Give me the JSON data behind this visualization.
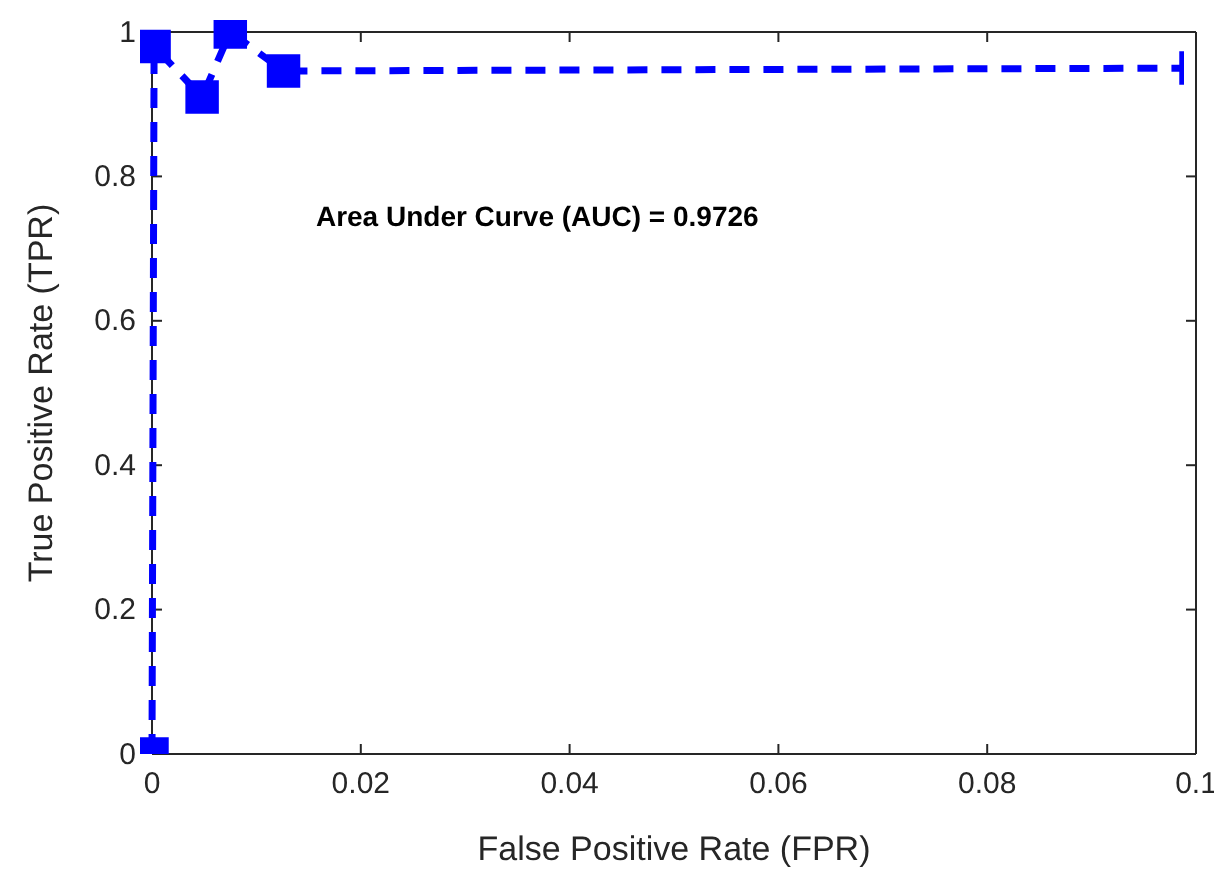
{
  "chart_data": {
    "type": "line",
    "xlabel": "False Positive Rate (FPR)",
    "ylabel": "True Positive Rate (TPR)",
    "x": [
      0,
      0.0002,
      0.0048,
      0.0075,
      0.0126,
      0.1
    ],
    "series": [
      {
        "color": "#0000ff",
        "values": [
          0,
          0.98,
          0.91,
          1.0,
          0.946,
          0.95
        ]
      }
    ],
    "xlim": [
      0,
      0.1
    ],
    "xticks": [
      0,
      0.02,
      0.04,
      0.06,
      0.08,
      0.1
    ],
    "ylim": [
      0,
      1
    ],
    "yticks": [
      0,
      0.2,
      0.4,
      0.6,
      0.8,
      1
    ],
    "marker": "square",
    "line_style": "dashed",
    "grid": false,
    "annotations": [
      "Area Under Curve (AUC) = 0.9726"
    ]
  }
}
